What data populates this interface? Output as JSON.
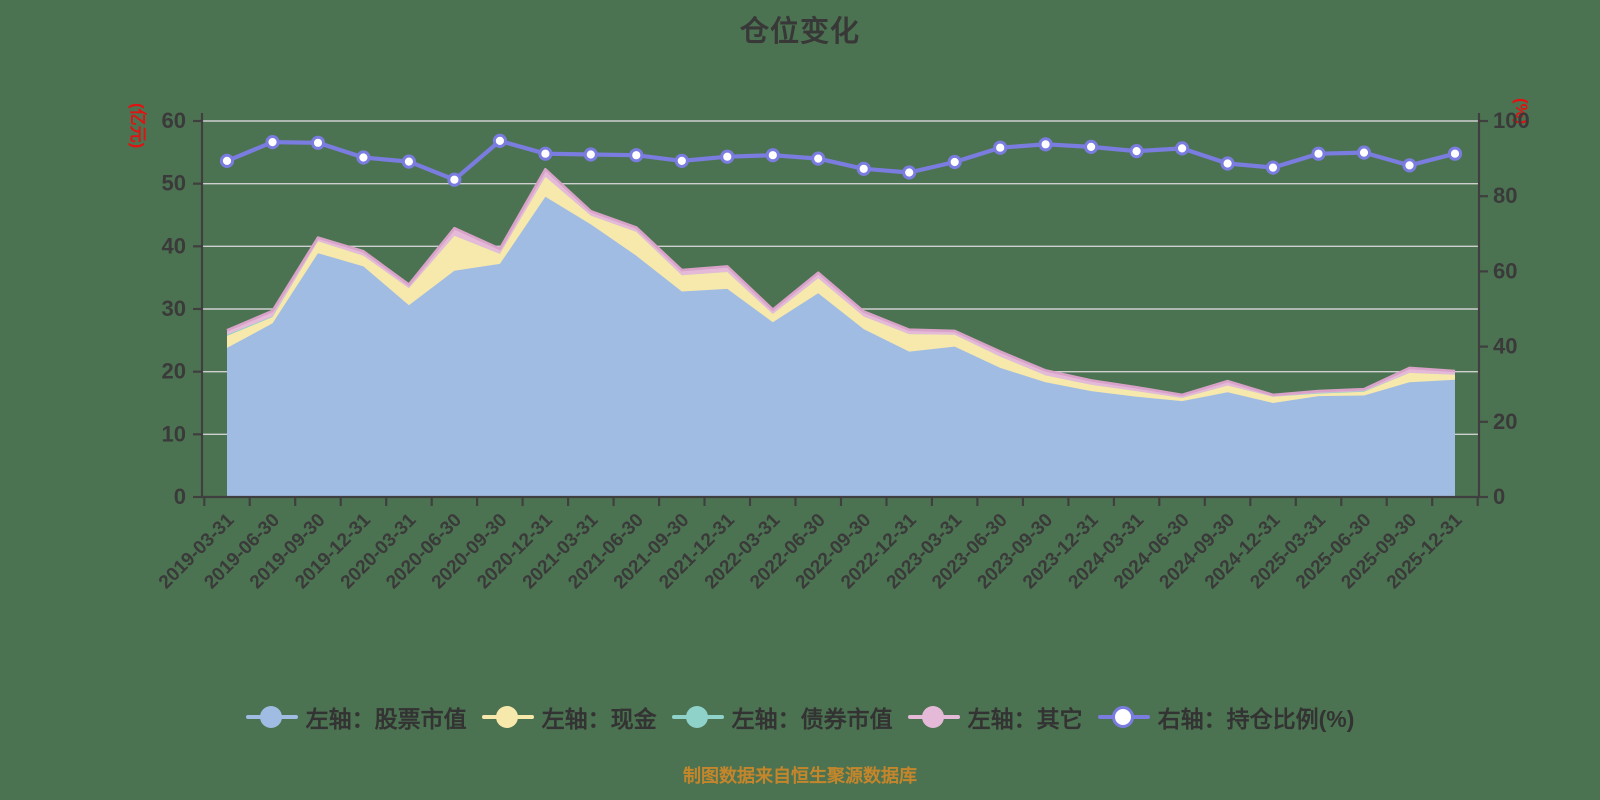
{
  "title": "仓位变化",
  "caption": "制图数据来自恒生聚源数据库",
  "axes": {
    "left_unit": "(亿元)",
    "right_unit": "(%)",
    "left_ticks": [
      0,
      10,
      20,
      30,
      40,
      50,
      60
    ],
    "right_ticks": [
      0,
      20,
      40,
      60,
      80,
      100
    ]
  },
  "colors": {
    "background": "#4c7351",
    "grid": "#cfcfcf",
    "axis": "#3f3f3f",
    "tick_text": "#3a3a3a",
    "unit_text": "#e01212",
    "title_text": "#383838",
    "caption_text": "#c5862b",
    "legend_text": "#333333",
    "stock_area": "#a0bce2",
    "cash_area": "#f7e8ab",
    "bond_area": "#8fd2ca",
    "other_area": "#e4bad8",
    "other_edge": "#d9a2c8",
    "ratio_line": "#7a7ce0",
    "marker_fill": "#ffffff"
  },
  "legend": [
    {
      "label": "左轴：股票市值",
      "color": "#a0bce2",
      "type": "area"
    },
    {
      "label": "左轴：现金",
      "color": "#f7e8ab",
      "type": "area"
    },
    {
      "label": "左轴：债券市值",
      "color": "#8fd2ca",
      "type": "area"
    },
    {
      "label": "左轴：其它",
      "color": "#e4bad8",
      "type": "area"
    },
    {
      "label": "右轴：持仓比例(%)",
      "color": "#7a7ce0",
      "type": "line"
    }
  ],
  "chart_data": {
    "type": "area",
    "subtype": "stacked-area-with-right-axis-line",
    "title": "仓位变化",
    "grid": true,
    "legend_position": "bottom",
    "ylim_left": [
      0,
      60
    ],
    "ylim_right": [
      0,
      100
    ],
    "categories": [
      "2019-03-31",
      "2019-06-30",
      "2019-09-30",
      "2019-12-31",
      "2020-03-31",
      "2020-06-30",
      "2020-09-30",
      "2020-12-31",
      "2021-03-31",
      "2021-06-30",
      "2021-09-30",
      "2021-12-31",
      "2022-03-31",
      "2022-06-30",
      "2022-09-30",
      "2022-12-31",
      "2023-03-31",
      "2023-06-30",
      "2023-09-30",
      "2023-12-31",
      "2024-03-31",
      "2024-06-30",
      "2024-09-30",
      "2024-12-31",
      "2025-03-31",
      "2025-06-30",
      "2025-09-30",
      "2025-12-31"
    ],
    "series": [
      {
        "name": "左轴：股票市值",
        "axis": "left",
        "type": "area",
        "stack": true,
        "color": "#a0bce2",
        "values": [
          23.8,
          27.7,
          38.9,
          36.8,
          30.6,
          36.1,
          37.2,
          47.9,
          43.5,
          38.5,
          32.8,
          33.2,
          27.9,
          32.5,
          26.8,
          23.2,
          24.0,
          20.6,
          18.3,
          16.9,
          16.0,
          15.3,
          16.7,
          15.0,
          16.1,
          16.2,
          18.3,
          18.7
        ]
      },
      {
        "name": "左轴：现金",
        "axis": "left",
        "type": "area",
        "stack": true,
        "color": "#f7e8ab",
        "values": [
          1.9,
          1.0,
          1.9,
          1.7,
          2.7,
          5.6,
          1.6,
          3.2,
          1.4,
          3.8,
          2.6,
          2.7,
          1.3,
          2.4,
          2.0,
          2.8,
          1.9,
          1.8,
          1.1,
          1.0,
          0.9,
          0.5,
          1.1,
          1.0,
          0.4,
          0.6,
          1.5,
          0.8
        ]
      },
      {
        "name": "左轴：债券市值",
        "axis": "left",
        "type": "area",
        "stack": true,
        "color": "#8fd2ca",
        "values": [
          0.2,
          0.1,
          0,
          0,
          0,
          0,
          0,
          0,
          0,
          0,
          0,
          0,
          0,
          0,
          0,
          0,
          0,
          0,
          0,
          0,
          0,
          0,
          0,
          0,
          0.1,
          0.1,
          0,
          0
        ]
      },
      {
        "name": "左轴：其它",
        "axis": "left",
        "type": "area",
        "stack": true,
        "color": "#e4bad8",
        "values": [
          0.7,
          0.9,
          0.6,
          0.7,
          0.6,
          1.2,
          0.8,
          1.2,
          0.7,
          0.7,
          0.8,
          0.9,
          0.7,
          0.9,
          0.8,
          0.7,
          0.6,
          0.8,
          0.8,
          0.7,
          0.6,
          0.5,
          0.7,
          0.3,
          0.3,
          0.3,
          0.8,
          0.6
        ]
      },
      {
        "name": "右轴：持仓比例(%)",
        "axis": "right",
        "type": "line",
        "stack": false,
        "color": "#7a7ce0",
        "values": [
          89.4,
          94.4,
          94.2,
          90.3,
          89.2,
          84.4,
          94.7,
          91.3,
          91.1,
          90.9,
          89.4,
          90.5,
          90.9,
          90.0,
          87.3,
          86.3,
          89.1,
          92.9,
          93.8,
          93.1,
          92.0,
          92.7,
          88.7,
          87.6,
          91.3,
          91.6,
          88.2,
          91.3
        ]
      }
    ]
  }
}
